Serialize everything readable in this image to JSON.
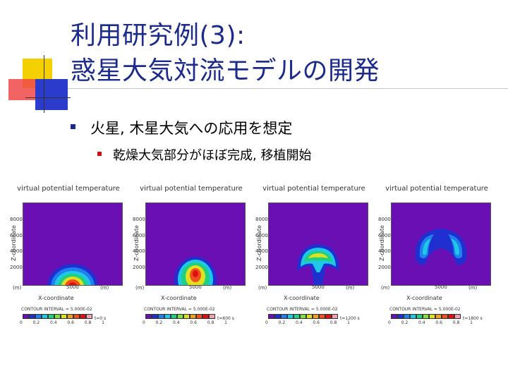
{
  "title": {
    "line1": "利用研究例(3):",
    "line2": "惑星大気対流モデルの開発"
  },
  "bullets": [
    {
      "text": "火星, 木星大気への応用を想定",
      "children": [
        {
          "text": "乾燥大気部分がほぼ完成, 移植開始"
        }
      ]
    }
  ],
  "panels": [
    {
      "title": "virtual potential temperature",
      "ylabel": "Z-coordinate",
      "xlabel": "X-coordinate",
      "yticks": [
        "8000",
        "6000",
        "4000",
        "2000"
      ],
      "xtick": "5000",
      "unit_left": "(m)",
      "unit_right": "(m)",
      "contour_interval": "CONTOUR INTERVAL = 5.000E-02",
      "colorbar_ticks": [
        "0",
        "0.2",
        "0.4",
        "0.6",
        "0.8",
        "1"
      ],
      "time": "t=0 s"
    },
    {
      "title": "virtual potential temperature",
      "ylabel": "Z-coordinate",
      "xlabel": "X-coordinate",
      "yticks": [
        "8000",
        "6000",
        "4000",
        "2000"
      ],
      "xtick": "5000",
      "unit_left": "(m)",
      "unit_right": "(m)",
      "contour_interval": "CONTOUR INTERVAL = 5.000E-02",
      "colorbar_ticks": [
        "0",
        "0.2",
        "0.4",
        "0.6",
        "0.8",
        "1"
      ],
      "time": "t=600 s"
    },
    {
      "title": "virtual potential temperature",
      "ylabel": "Z-coordinate",
      "xlabel": "X-coordinate",
      "yticks": [
        "8000",
        "6000",
        "4000",
        "2000"
      ],
      "xtick": "5000",
      "unit_left": "(m)",
      "unit_right": "(m)",
      "contour_interval": "CONTOUR INTERVAL = 5.000E-02",
      "colorbar_ticks": [
        "0",
        "0.2",
        "0.4",
        "0.6",
        "0.8",
        "1"
      ],
      "time": "t=1200 s"
    },
    {
      "title": "virtual potential temperature",
      "ylabel": "Z-coordinate",
      "xlabel": "X-coordinate",
      "yticks": [
        "8000",
        "6000",
        "4000",
        "2000"
      ],
      "xtick": "5000",
      "unit_left": "(m)",
      "unit_right": "(m)",
      "contour_interval": "CONTOUR INTERVAL = 5.000E-02",
      "colorbar_ticks": [
        "0",
        "0.2",
        "0.4",
        "0.6",
        "0.8",
        "1"
      ],
      "time": "t=1800 s"
    }
  ],
  "colors": {
    "title": "#1c2a8c",
    "background_field": "#6a0fb4",
    "colorbar": [
      "#6a0fb4",
      "#2030d0",
      "#2080f0",
      "#20c8e8",
      "#20d080",
      "#80e040",
      "#e0e020",
      "#f0a020",
      "#f05020",
      "#e01010",
      "#f0a0b0"
    ]
  }
}
